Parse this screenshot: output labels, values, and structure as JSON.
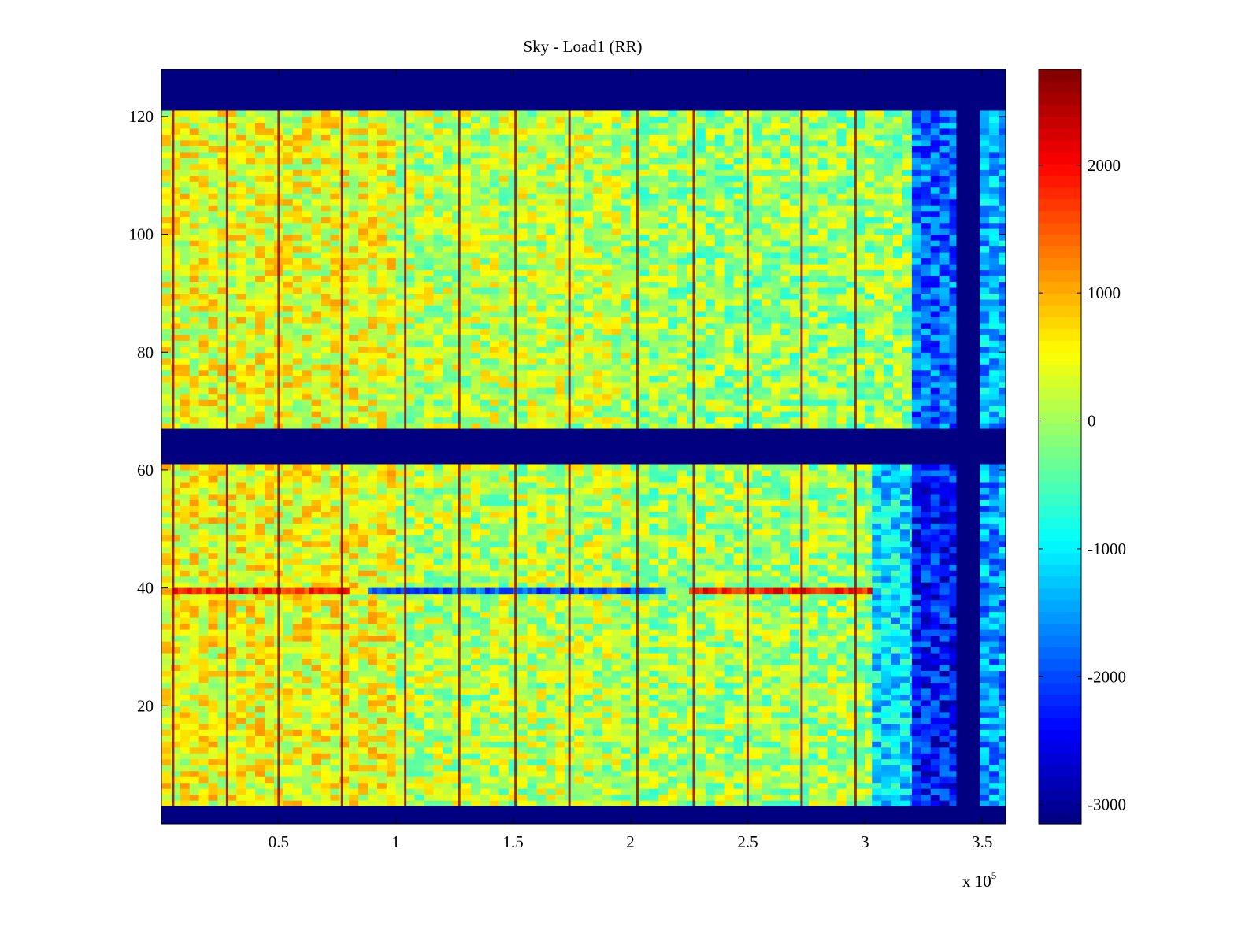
{
  "chart_data": {
    "type": "heatmap",
    "title": "Sky - Load1 (RR)",
    "xlabel": "",
    "ylabel": "",
    "x_exponent_label": {
      "base": "x 10",
      "exponent": "5"
    },
    "xlim": [
      0,
      360000
    ],
    "ylim": [
      0,
      128
    ],
    "x_ticks": [
      {
        "value": 50000,
        "label": "0.5"
      },
      {
        "value": 100000,
        "label": "1"
      },
      {
        "value": 150000,
        "label": "1.5"
      },
      {
        "value": 200000,
        "label": "2"
      },
      {
        "value": 250000,
        "label": "2.5"
      },
      {
        "value": 300000,
        "label": "3"
      },
      {
        "value": 350000,
        "label": "3.5"
      }
    ],
    "y_ticks": [
      {
        "value": 20,
        "label": "20"
      },
      {
        "value": 40,
        "label": "40"
      },
      {
        "value": 60,
        "label": "60"
      },
      {
        "value": 80,
        "label": "80"
      },
      {
        "value": 100,
        "label": "100"
      },
      {
        "value": 120,
        "label": "120"
      }
    ],
    "colorbar": {
      "colormap": "jet",
      "clim": [
        -3150,
        2750
      ],
      "ticks": [
        {
          "value": -3000,
          "label": "-3000"
        },
        {
          "value": -2000,
          "label": "-2000"
        },
        {
          "value": -1000,
          "label": "-1000"
        },
        {
          "value": 0,
          "label": "0"
        },
        {
          "value": 1000,
          "label": "1000"
        },
        {
          "value": 2000,
          "label": "2000"
        }
      ]
    },
    "masked_value": -3150,
    "masked_row_bands": [
      [
        0,
        3
      ],
      [
        61,
        67
      ],
      [
        121,
        128
      ]
    ],
    "masked_column_bands": [
      [
        339000,
        349000
      ]
    ],
    "vertical_stripe_columns": [
      5000,
      28000,
      50000,
      77000,
      104000,
      127000,
      151000,
      174000,
      203000,
      227000,
      250000,
      273000,
      296000
    ],
    "horizontal_feature_row": 39,
    "field_regions": [
      {
        "x": [
          0,
          100000
        ],
        "y": [
          3,
          61
        ],
        "level": 450
      },
      {
        "x": [
          100000,
          200000
        ],
        "y": [
          3,
          61
        ],
        "level": 100
      },
      {
        "x": [
          200000,
          303000
        ],
        "y": [
          3,
          61
        ],
        "level": 0
      },
      {
        "x": [
          303000,
          320000
        ],
        "y": [
          3,
          61
        ],
        "level": -1100
      },
      {
        "x": [
          320000,
          339000
        ],
        "y": [
          3,
          61
        ],
        "level": -2300
      },
      {
        "x": [
          349000,
          360000
        ],
        "y": [
          3,
          61
        ],
        "level": -1500
      },
      {
        "x": [
          0,
          100000
        ],
        "y": [
          67,
          121
        ],
        "level": 400
      },
      {
        "x": [
          100000,
          200000
        ],
        "y": [
          67,
          121
        ],
        "level": 150
      },
      {
        "x": [
          200000,
          320000
        ],
        "y": [
          67,
          121
        ],
        "level": -50
      },
      {
        "x": [
          320000,
          339000
        ],
        "y": [
          67,
          121
        ],
        "level": -1800
      },
      {
        "x": [
          349000,
          360000
        ],
        "y": [
          67,
          121
        ],
        "level": -1400
      }
    ],
    "row39_feature_segments": [
      {
        "x": [
          5000,
          80000
        ],
        "level": 1800
      },
      {
        "x": [
          88000,
          215000
        ],
        "level": -1900
      },
      {
        "x": [
          225000,
          303000
        ],
        "level": 1900
      }
    ]
  }
}
